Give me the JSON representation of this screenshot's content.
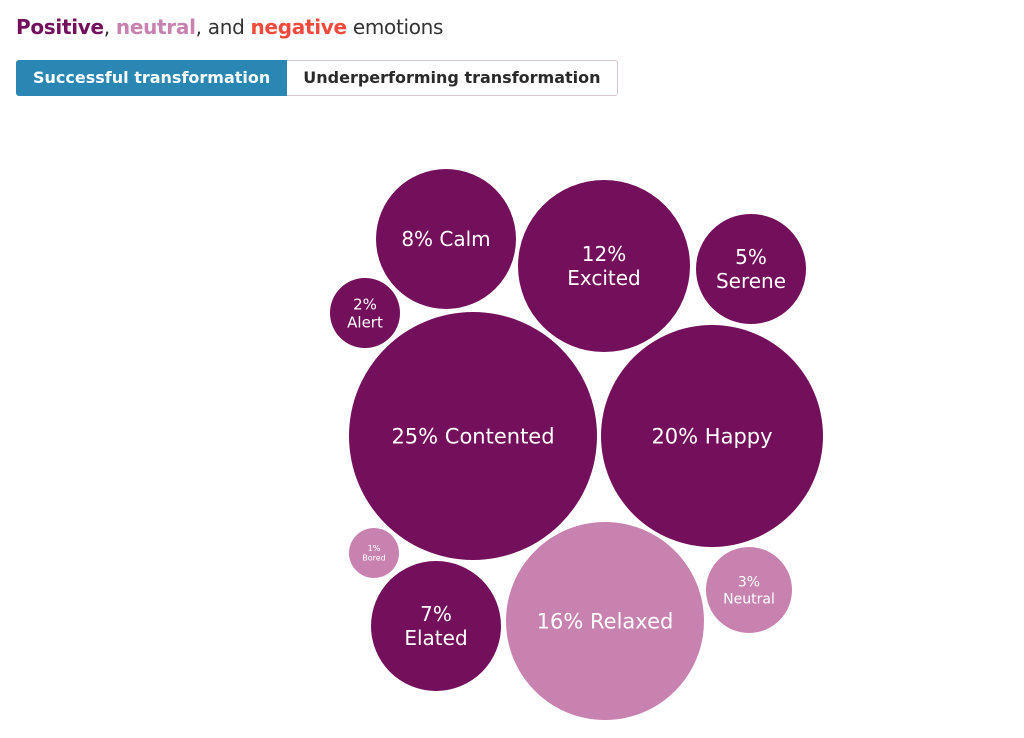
{
  "title": {
    "positive": "Positive",
    "sep1": ", ",
    "neutral": "neutral",
    "sep2": ", and ",
    "negative": "negative",
    "rest": " emotions"
  },
  "tabs": [
    {
      "label": "Successful transformation",
      "active": true
    },
    {
      "label": "Underperforming transformation",
      "active": false
    }
  ],
  "colors": {
    "positive": "#730f5b",
    "neutral": "#c882b0",
    "negative": "#f04b3c",
    "tab_active": "#2a86b3"
  },
  "chart_data": {
    "type": "bubble",
    "title": "Positive, neutral, and negative emotions",
    "unit": "%",
    "items": [
      {
        "label": "Calm",
        "value": 8,
        "category": "positive"
      },
      {
        "label": "Excited",
        "value": 12,
        "category": "positive"
      },
      {
        "label": "Serene",
        "value": 5,
        "category": "positive"
      },
      {
        "label": "Alert",
        "value": 2,
        "category": "positive"
      },
      {
        "label": "Contented",
        "value": 25,
        "category": "positive"
      },
      {
        "label": "Happy",
        "value": 20,
        "category": "positive"
      },
      {
        "label": "Bored",
        "value": 1,
        "category": "neutral"
      },
      {
        "label": "Elated",
        "value": 7,
        "category": "positive"
      },
      {
        "label": "Relaxed",
        "value": 16,
        "category": "neutral"
      },
      {
        "label": "Neutral",
        "value": 3,
        "category": "neutral"
      }
    ]
  }
}
